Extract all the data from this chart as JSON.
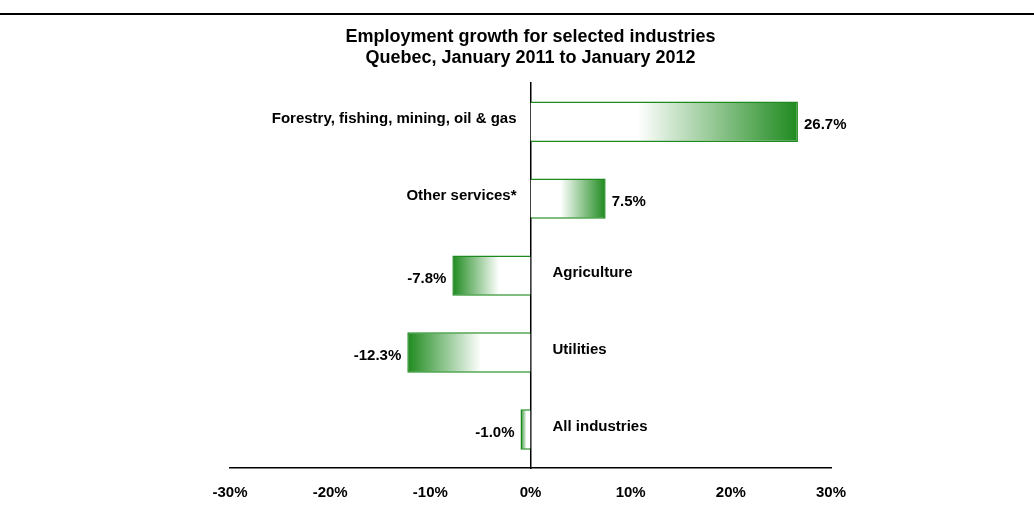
{
  "chart_data": {
    "type": "bar",
    "orientation": "horizontal",
    "title": "Employment growth for selected industries\nQuebec, January 2011 to January 2012",
    "categories": [
      "Forestry, fishing, mining, oil & gas",
      "Other services*",
      "Agriculture",
      "Utilities",
      "All industries"
    ],
    "series": [
      {
        "color": "#1e8a1e",
        "values": [
          26.7,
          7.5,
          -7.8,
          -12.3,
          -1.0
        ],
        "value_labels": [
          "26.7%",
          "7.5%",
          "-7.8%",
          "-12.3%",
          "-1.0%"
        ]
      }
    ],
    "xlim": [
      -30,
      30
    ],
    "xticks": [
      {
        "value": -30,
        "label": "-30%"
      },
      {
        "value": -20,
        "label": "-20%"
      },
      {
        "value": -10,
        "label": "-10%"
      },
      {
        "value": 0,
        "label": "0%"
      },
      {
        "value": 10,
        "label": "10%"
      },
      {
        "value": 20,
        "label": "20%"
      },
      {
        "value": 30,
        "label": "30%"
      }
    ],
    "grid": false,
    "legend": false
  }
}
